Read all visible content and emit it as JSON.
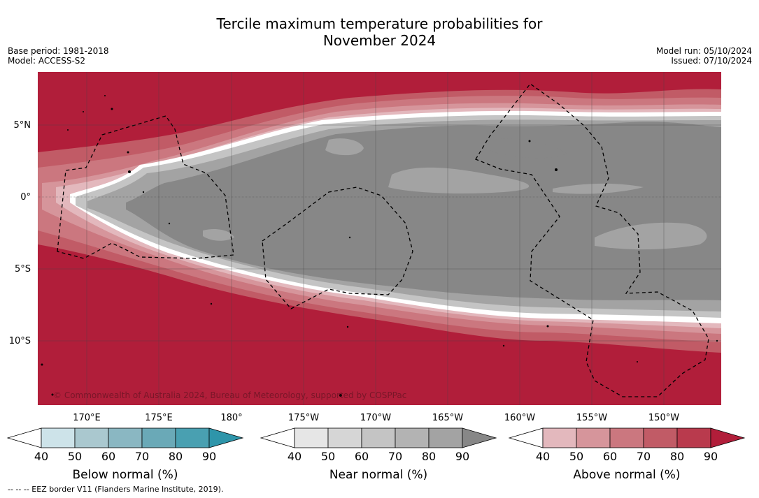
{
  "title_line1": "Tercile maximum temperature probabilities for",
  "title_line2": "November 2024",
  "base_period": "Base period: 1981-2018",
  "model": "Model: ACCESS-S2",
  "model_run": "Model run: 05/10/2024",
  "issued": "Issued: 07/10/2024",
  "copyright": "© Commonwealth of Australia 2024, Bureau of Meteorology, supported by COSPPac",
  "footnote": "--  --  -- EEZ border V11 (Flanders Marine Institute, 2019).",
  "map": {
    "lon_labels": [
      "170°E",
      "175°E",
      "180°",
      "175°W",
      "170°W",
      "165°W",
      "160°W",
      "155°W",
      "150°W"
    ],
    "lat_labels": [
      "5°N",
      "0°",
      "5°S",
      "10°S"
    ],
    "colors": {
      "above_strong": "#b11e3a",
      "near_dark": "#878787",
      "near_mid": "#a3a3a3",
      "near_light": "#c4c4c4"
    }
  },
  "colorbars": [
    {
      "label": "Below normal (%)",
      "ticks": [
        "40",
        "50",
        "60",
        "70",
        "80",
        "90"
      ],
      "colors": [
        "#ffffff",
        "#cde3e9",
        "#aac8cf",
        "#8ab7c2",
        "#6aa9b7",
        "#49a0b1",
        "#2e95aa"
      ]
    },
    {
      "label": "Near normal (%)",
      "ticks": [
        "40",
        "50",
        "60",
        "70",
        "80",
        "90"
      ],
      "colors": [
        "#ffffff",
        "#e6e6e6",
        "#d6d6d6",
        "#c4c4c4",
        "#b3b3b3",
        "#a3a3a3",
        "#878787"
      ]
    },
    {
      "label": "Above normal (%)",
      "ticks": [
        "40",
        "50",
        "60",
        "70",
        "80",
        "90"
      ],
      "colors": [
        "#ffffff",
        "#e3b8bd",
        "#d6959b",
        "#cb777f",
        "#c15b66",
        "#b93a4d",
        "#b11e3a"
      ]
    }
  ]
}
